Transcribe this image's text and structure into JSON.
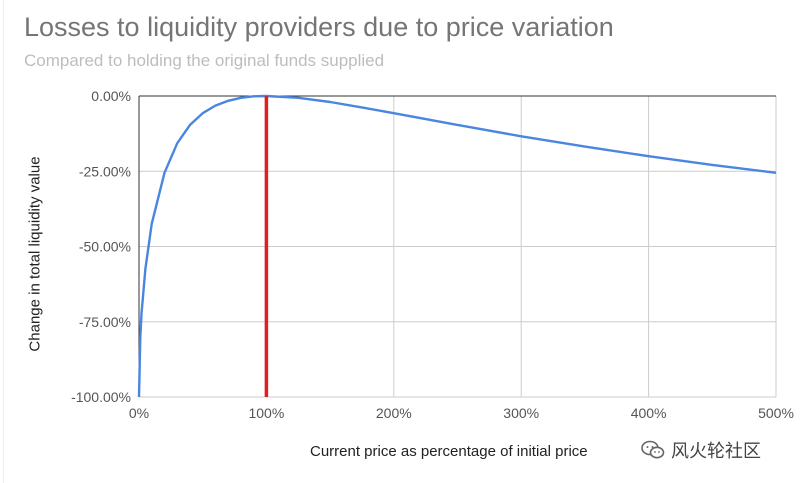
{
  "chart_data": {
    "type": "line",
    "title": "Losses to liquidity providers due to price variation",
    "subtitle": "Compared to holding the original funds supplied",
    "xlabel": "Current price as percentage of initial price",
    "ylabel": "Change in total liquidity value",
    "xlim": [
      0,
      500
    ],
    "ylim": [
      -100,
      0
    ],
    "x_ticks": [
      0,
      100,
      200,
      300,
      400,
      500
    ],
    "x_tick_labels": [
      "0%",
      "100%",
      "200%",
      "300%",
      "400%",
      "500%"
    ],
    "y_ticks": [
      0,
      -25,
      -50,
      -75,
      -100
    ],
    "y_tick_labels": [
      "0.00%",
      "-25.00%",
      "-50.00%",
      "-75.00%",
      "-100.00%"
    ],
    "grid": true,
    "series": [
      {
        "color": "#4a86e0",
        "x": [
          0,
          1,
          2,
          5,
          10,
          20,
          30,
          40,
          50,
          60,
          70,
          80,
          90,
          100,
          125,
          150,
          175,
          200,
          250,
          300,
          350,
          400,
          450,
          500
        ],
        "y": [
          -100,
          -80.2,
          -72.3,
          -57.4,
          -42.5,
          -25.5,
          -15.7,
          -9.6,
          -5.7,
          -3.2,
          -1.6,
          -0.6,
          -0.1,
          0,
          -0.6,
          -2.0,
          -3.8,
          -5.7,
          -9.6,
          -13.4,
          -16.8,
          -20.0,
          -22.9,
          -25.5
        ]
      }
    ],
    "reference_line": {
      "x": 100,
      "color": "#e02020"
    }
  },
  "watermark": {
    "icon": "wechat-icon",
    "text": "风火轮社区"
  }
}
